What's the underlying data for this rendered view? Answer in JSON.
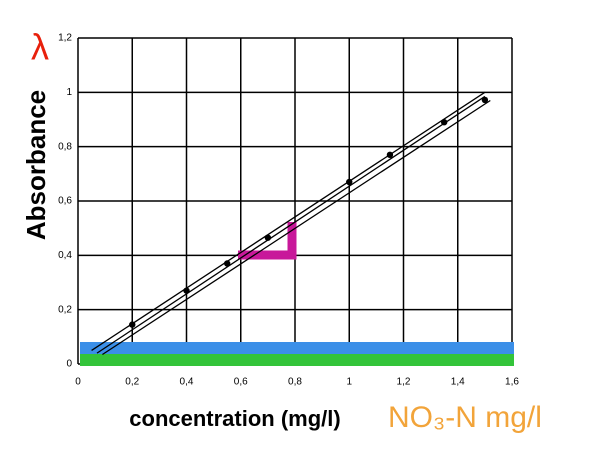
{
  "chart_data": {
    "type": "scatter",
    "title_symbol": "λ",
    "y_label": "Absorbance",
    "x_label": "concentration (mg/l)",
    "annotation": "NO₃-N mg/l",
    "x": [
      0.2,
      0.4,
      0.55,
      0.7,
      1.0,
      1.15,
      1.35,
      1.5
    ],
    "values": [
      0.145,
      0.27,
      0.37,
      0.465,
      0.67,
      0.77,
      0.89,
      0.972
    ],
    "color": "#000000",
    "fit_lines": [
      {
        "x": [
          0.05,
          1.5
        ],
        "values": [
          0.05,
          1.0
        ]
      },
      {
        "x": [
          0.07,
          1.5
        ],
        "values": [
          0.04,
          0.985
        ]
      },
      {
        "x": [
          0.09,
          1.52
        ],
        "values": [
          0.035,
          0.97
        ]
      }
    ],
    "xlim": [
      0,
      1.6
    ],
    "ylim": [
      0,
      1.2
    ],
    "xticks": [
      0,
      {
        "value": 0.2,
        "label": "0,2"
      },
      {
        "value": 0.4,
        "label": "0,4"
      },
      {
        "value": 0.6,
        "label": "0,6"
      },
      {
        "value": 0.8,
        "label": "0,8"
      },
      1,
      {
        "value": 1.2,
        "label": "1,2"
      },
      {
        "value": 1.4,
        "label": "1,4"
      },
      {
        "value": 1.6,
        "label": "1,6"
      }
    ],
    "yticks": [
      0,
      {
        "value": 0.2,
        "label": "0,2"
      },
      {
        "value": 0.4,
        "label": "0,4"
      },
      {
        "value": 0.6,
        "label": "0,6"
      },
      {
        "value": 0.8,
        "label": "0,8"
      },
      1,
      {
        "value": 1.2,
        "label": "1,2"
      }
    ],
    "grid": true
  }
}
